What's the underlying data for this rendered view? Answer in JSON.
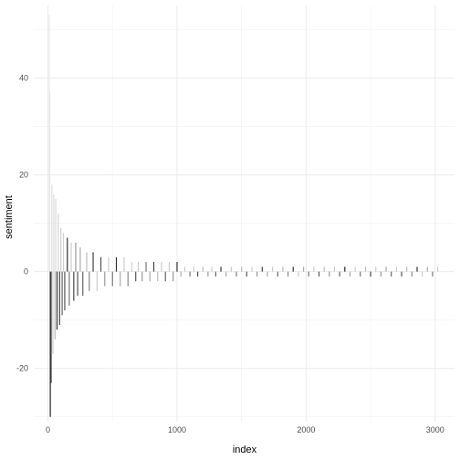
{
  "chart_data": {
    "type": "bar",
    "title": "",
    "xlabel": "index",
    "ylabel": "sentiment",
    "xlim": [
      -110,
      3150
    ],
    "ylim": [
      -31,
      55
    ],
    "x_ticks": [
      0,
      1000,
      2000,
      3000
    ],
    "x_tick_labels": [
      "0",
      "1000",
      "2000",
      "3000"
    ],
    "y_ticks": [
      -20,
      0,
      20,
      40
    ],
    "y_tick_labels": [
      "-20",
      "0",
      "20",
      "40"
    ],
    "grid": true,
    "legend": "none",
    "fill": "gray scale by frequency (light = frequent, dark = rare)",
    "series": [
      {
        "x": [
          10,
          14,
          18,
          25,
          30,
          38,
          45,
          55,
          60,
          70,
          80,
          90,
          100,
          110,
          120,
          130,
          150,
          165,
          180,
          200,
          215,
          230,
          250,
          270,
          300,
          320,
          350,
          380,
          410,
          440,
          470,
          500,
          530,
          560,
          590,
          620,
          650,
          680,
          700,
          730,
          760,
          790,
          820,
          850,
          880,
          910,
          940,
          970,
          1000,
          1030,
          1060,
          1100,
          1130,
          1160,
          1200,
          1240,
          1270,
          1300,
          1340,
          1380,
          1420,
          1460,
          1500,
          1540,
          1580,
          1620,
          1660,
          1700,
          1740,
          1780,
          1820,
          1860,
          1900,
          1940,
          1980,
          2020,
          2060,
          2100,
          2140,
          2180,
          2220,
          2260,
          2300,
          2340,
          2380,
          2420,
          2460,
          2500,
          2540,
          2580,
          2620,
          2660,
          2700,
          2740,
          2780,
          2820,
          2860,
          2900,
          2940,
          2980,
          3020
        ],
        "values": [
          53,
          37,
          -30,
          -23,
          18,
          -17,
          16,
          -14,
          15,
          -12,
          12,
          -11,
          9,
          -9,
          8,
          -8,
          7,
          -7,
          6,
          -6,
          6,
          -5,
          5,
          -5,
          4,
          -4,
          4,
          -4,
          3,
          -3,
          3,
          -3,
          3,
          -3,
          3,
          -3,
          2,
          -2,
          2,
          -2,
          2,
          -2,
          2,
          -2,
          2,
          -2,
          2,
          -2,
          2,
          -1,
          1,
          -1,
          1,
          -1,
          1,
          -1,
          1,
          -1,
          1,
          -1,
          1,
          -1,
          1,
          -1,
          1,
          -1,
          1,
          -1,
          1,
          -1,
          1,
          -1,
          1,
          -1,
          1,
          -1,
          1,
          -1,
          1,
          -1,
          1,
          -1,
          1,
          -1,
          1,
          -1,
          1,
          -1,
          1,
          -1,
          1,
          -1,
          1,
          -1,
          1,
          -1,
          1,
          -1,
          1,
          -1,
          1
        ],
        "shades": [
          "#e8e8e8",
          "#e6e6e6",
          "#222222",
          "#555555",
          "#e0e0e0",
          "#cccccc",
          "#dcdcdc",
          "#bbbbbb",
          "#d8d8d8",
          "#333333",
          "#d5d5d5",
          "#444444",
          "#d0d0d0",
          "#666666",
          "#cfcfcf",
          "#555555",
          "#333333",
          "#777777",
          "#cccccc",
          "#444444",
          "#999999",
          "#555555",
          "#aaaaaa",
          "#666666",
          "#bbbbbb",
          "#888888",
          "#444444",
          "#cccccc",
          "#555555",
          "#999999",
          "#cccccc",
          "#777777",
          "#333333",
          "#aaaaaa",
          "#cccccc",
          "#888888",
          "#d0d0d0",
          "#555555",
          "#cccccc",
          "#999999",
          "#777777",
          "#aaaaaa",
          "#444444",
          "#bbbbbb",
          "#cccccc",
          "#666666",
          "#cccccc",
          "#999999",
          "#333333",
          "#aaaaaa",
          "#cccccc",
          "#777777",
          "#cccccc",
          "#555555",
          "#bbbbbb",
          "#999999",
          "#cccccc",
          "#666666",
          "#333333",
          "#aaaaaa",
          "#cccccc",
          "#777777",
          "#bbbbbb",
          "#555555",
          "#cccccc",
          "#999999",
          "#444444",
          "#aaaaaa",
          "#cccccc",
          "#666666",
          "#bbbbbb",
          "#888888",
          "#333333",
          "#cccccc",
          "#aaaaaa",
          "#777777",
          "#cccccc",
          "#555555",
          "#bbbbbb",
          "#999999",
          "#cccccc",
          "#666666",
          "#222222",
          "#aaaaaa",
          "#cccccc",
          "#777777",
          "#bbbbbb",
          "#444444",
          "#cccccc",
          "#999999",
          "#aaaaaa",
          "#666666",
          "#cccccc",
          "#555555",
          "#bbbbbb",
          "#888888",
          "#333333",
          "#cccccc",
          "#aaaaaa",
          "#777777",
          "#cccccc"
        ]
      }
    ]
  }
}
